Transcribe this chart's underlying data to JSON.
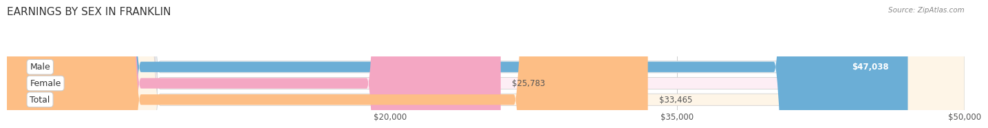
{
  "title": "EARNINGS BY SEX IN FRANKLIN",
  "source": "Source: ZipAtlas.com",
  "categories": [
    "Male",
    "Female",
    "Total"
  ],
  "values": [
    47038,
    25783,
    33465
  ],
  "bar_colors": [
    "#6BAED6",
    "#F4A7C3",
    "#FDBE85"
  ],
  "bar_bg_colors": [
    "#E8F4FC",
    "#FDEEF5",
    "#FEF5E7"
  ],
  "value_labels": [
    "$47,038",
    "$25,783",
    "$33,465"
  ],
  "value_inside": [
    true,
    false,
    false
  ],
  "xmin": 0,
  "xmax": 50000,
  "xticks": [
    20000,
    35000,
    50000
  ],
  "xtick_labels": [
    "$20,000",
    "$35,000",
    "$50,000"
  ],
  "bar_height": 0.72,
  "bar_gap": 0.05,
  "fig_bg": "#ffffff",
  "title_fontsize": 11,
  "source_fontsize": 7.5
}
